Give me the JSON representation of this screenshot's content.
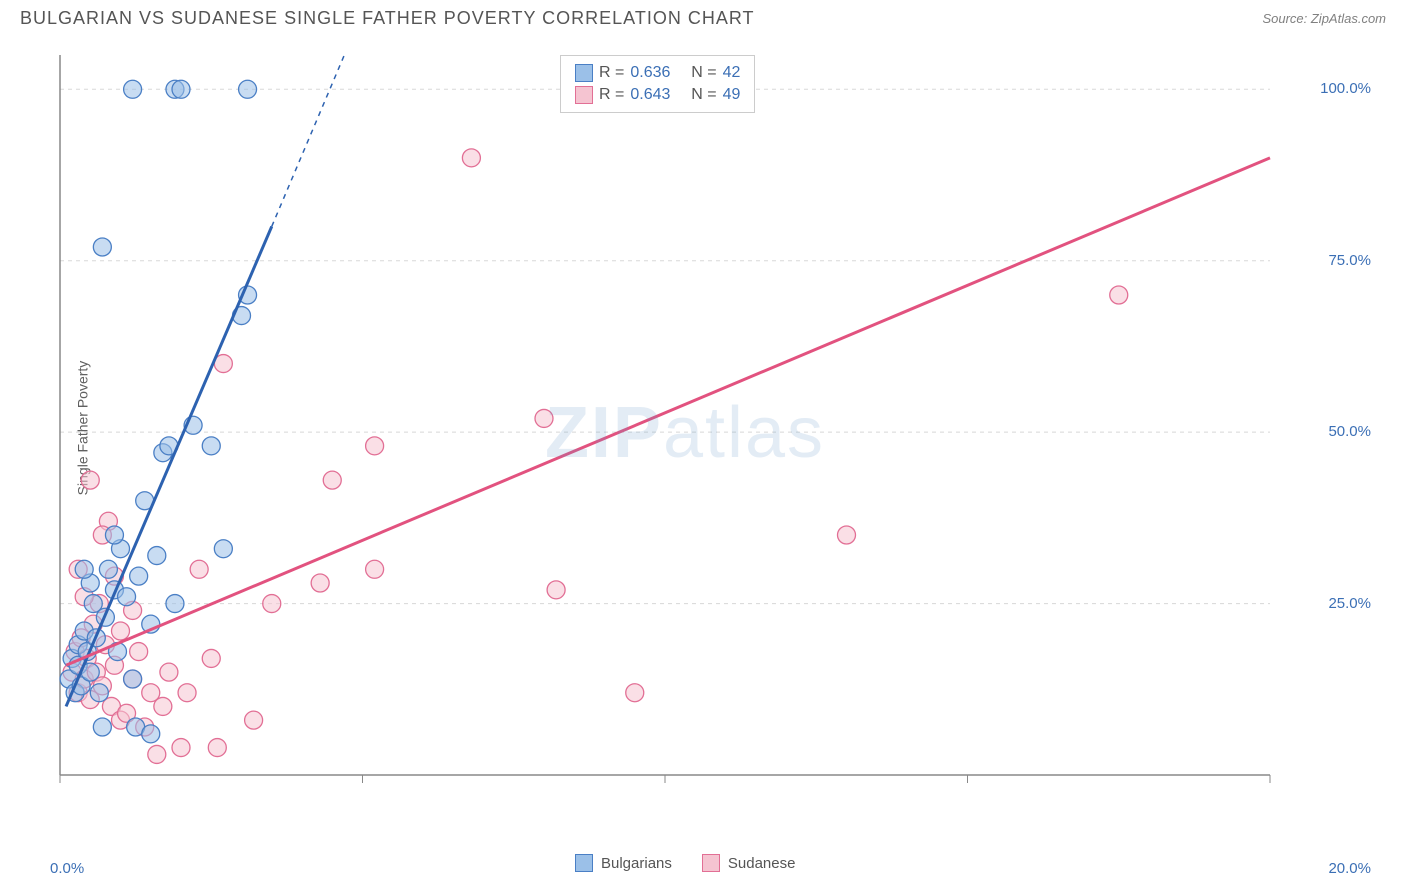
{
  "header": {
    "title": "BULGARIAN VS SUDANESE SINGLE FATHER POVERTY CORRELATION CHART",
    "source": "Source: ZipAtlas.com"
  },
  "watermark": {
    "zip": "ZIP",
    "atlas": "atlas"
  },
  "chart": {
    "type": "scatter",
    "y_axis_label": "Single Father Poverty",
    "background_color": "#ffffff",
    "grid_color": "#d8d8d8",
    "axis_color": "#888888",
    "tick_color": "#888888",
    "label_color": "#3b6fb5",
    "label_fontsize": 15,
    "xlim": [
      0,
      20
    ],
    "ylim": [
      0,
      105
    ],
    "x_origin_visible": 0,
    "x_ticks": [
      0,
      5,
      10,
      15,
      20
    ],
    "x_tick_labels": [
      "0.0%",
      "",
      "",
      "",
      "20.0%"
    ],
    "y_ticks": [
      25,
      50,
      75,
      100
    ],
    "y_tick_labels": [
      "25.0%",
      "50.0%",
      "75.0%",
      "100.0%"
    ],
    "marker_radius": 9,
    "marker_opacity": 0.55,
    "marker_stroke_width": 1.3,
    "trendline_width": 3,
    "series": [
      {
        "name": "Bulgarians",
        "fill_color": "#9bc0e8",
        "stroke_color": "#4a7fc5",
        "line_color": "#2d62b0",
        "r": "0.636",
        "n": "42",
        "trend": {
          "x1": 0.1,
          "y1": 10,
          "x2": 3.5,
          "y2": 80,
          "dash_x2": 4.7,
          "dash_y2": 105
        },
        "points": [
          [
            0.15,
            14
          ],
          [
            0.2,
            17
          ],
          [
            0.25,
            12
          ],
          [
            0.3,
            16
          ],
          [
            0.3,
            19
          ],
          [
            0.35,
            13
          ],
          [
            0.4,
            21
          ],
          [
            0.45,
            18
          ],
          [
            0.5,
            15
          ],
          [
            0.5,
            28
          ],
          [
            0.55,
            25
          ],
          [
            0.6,
            20
          ],
          [
            0.65,
            12
          ],
          [
            0.7,
            7
          ],
          [
            0.75,
            23
          ],
          [
            0.8,
            30
          ],
          [
            0.9,
            27
          ],
          [
            0.95,
            18
          ],
          [
            1.0,
            33
          ],
          [
            1.1,
            26
          ],
          [
            1.2,
            14
          ],
          [
            1.25,
            7
          ],
          [
            1.3,
            29
          ],
          [
            1.4,
            40
          ],
          [
            1.5,
            22
          ],
          [
            1.6,
            32
          ],
          [
            1.7,
            47
          ],
          [
            1.8,
            48
          ],
          [
            1.9,
            25
          ],
          [
            2.2,
            51
          ],
          [
            2.5,
            48
          ],
          [
            2.7,
            33
          ],
          [
            3.0,
            67
          ],
          [
            3.1,
            70
          ],
          [
            0.7,
            77
          ],
          [
            1.2,
            100
          ],
          [
            1.9,
            100
          ],
          [
            2.0,
            100
          ],
          [
            3.1,
            100
          ],
          [
            1.5,
            6
          ],
          [
            0.4,
            30
          ],
          [
            0.9,
            35
          ]
        ]
      },
      {
        "name": "Sudanese",
        "fill_color": "#f5c4d1",
        "stroke_color": "#e26f95",
        "line_color": "#e2527f",
        "r": "0.643",
        "n": "49",
        "trend": {
          "x1": 0.1,
          "y1": 16,
          "x2": 20.0,
          "y2": 90
        },
        "points": [
          [
            0.2,
            15
          ],
          [
            0.25,
            18
          ],
          [
            0.3,
            12
          ],
          [
            0.35,
            20
          ],
          [
            0.4,
            14
          ],
          [
            0.45,
            17
          ],
          [
            0.5,
            43
          ],
          [
            0.5,
            11
          ],
          [
            0.55,
            22
          ],
          [
            0.6,
            15
          ],
          [
            0.65,
            25
          ],
          [
            0.7,
            13
          ],
          [
            0.75,
            19
          ],
          [
            0.8,
            37
          ],
          [
            0.85,
            10
          ],
          [
            0.9,
            16
          ],
          [
            1.0,
            8
          ],
          [
            1.0,
            21
          ],
          [
            1.1,
            9
          ],
          [
            1.2,
            14
          ],
          [
            1.3,
            18
          ],
          [
            1.4,
            7
          ],
          [
            1.5,
            12
          ],
          [
            1.6,
            3
          ],
          [
            1.7,
            10
          ],
          [
            1.8,
            15
          ],
          [
            2.0,
            4
          ],
          [
            2.1,
            12
          ],
          [
            2.3,
            30
          ],
          [
            2.5,
            17
          ],
          [
            2.6,
            4
          ],
          [
            2.7,
            60
          ],
          [
            3.2,
            8
          ],
          [
            3.5,
            25
          ],
          [
            4.3,
            28
          ],
          [
            4.5,
            43
          ],
          [
            5.2,
            48
          ],
          [
            5.2,
            30
          ],
          [
            6.8,
            90
          ],
          [
            8.2,
            27
          ],
          [
            9.5,
            12
          ],
          [
            8.0,
            52
          ],
          [
            13.0,
            35
          ],
          [
            17.5,
            70
          ],
          [
            0.3,
            30
          ],
          [
            0.7,
            35
          ],
          [
            0.9,
            29
          ],
          [
            1.2,
            24
          ],
          [
            0.4,
            26
          ]
        ]
      }
    ]
  },
  "legend": {
    "top": {
      "r_label": "R =",
      "n_label": "N ="
    },
    "bottom": {
      "items": [
        "Bulgarians",
        "Sudanese"
      ]
    }
  }
}
